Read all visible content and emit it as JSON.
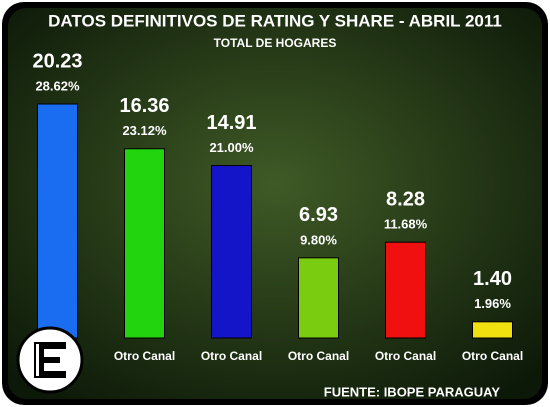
{
  "chart_data": {
    "type": "bar",
    "title": "DATOS DEFINITIVOS DE RATING Y SHARE - ABRIL 2011",
    "subtitle": "TOTAL DE HOGARES",
    "source": "FUENTE: IBOPE PARAGUAY",
    "categories": [
      null,
      "Otro Canal",
      "Otro Canal",
      "Otro Canal",
      "Otro Canal",
      "Otro Canal"
    ],
    "values": [
      20.23,
      16.36,
      14.91,
      6.93,
      8.28,
      1.4
    ],
    "value_labels": [
      "20.23",
      "16.36",
      "14.91",
      "6.93",
      "8.28",
      "1.40"
    ],
    "share_labels": [
      "28.62%",
      "23.12%",
      "21.00%",
      "9.80%",
      "11.68%",
      "1.96%"
    ],
    "colors": [
      "#1a6cf0",
      "#22d40e",
      "#1414c8",
      "#7acc10",
      "#f01010",
      "#f0e010"
    ]
  }
}
